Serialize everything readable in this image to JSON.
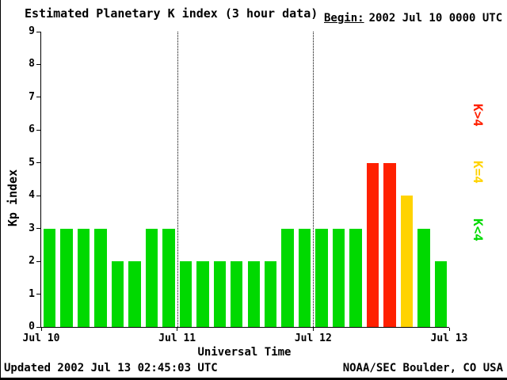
{
  "title": "Estimated Planetary K index (3 hour data)",
  "begin": {
    "label": "Begin:",
    "value": "2002 Jul 10 0000 UTC"
  },
  "footer": {
    "updated": "Updated 2002 Jul 13 02:45:03 UTC",
    "credit": "NOAA/SEC Boulder, CO USA"
  },
  "chart_data": {
    "type": "bar",
    "title": "Estimated Planetary K index (3 hour data)",
    "xlabel": "Universal Time",
    "ylabel": "Kp index",
    "ylim": [
      0,
      9
    ],
    "yticks": [
      0,
      1,
      2,
      3,
      4,
      5,
      6,
      7,
      8,
      9
    ],
    "x_day_labels": [
      "Jul 10",
      "Jul 11",
      "Jul 12",
      "Jul 13"
    ],
    "bars_per_day": 8,
    "interval_hours": 3,
    "values": [
      3,
      3,
      3,
      3,
      2,
      2,
      3,
      3,
      2,
      2,
      2,
      2,
      2,
      2,
      3,
      3,
      3,
      3,
      3,
      5,
      5,
      4,
      3,
      2
    ],
    "day_boundary_lines": [
      1,
      2
    ],
    "colors": {
      "low": "#00D900",
      "mid": "#FFD300",
      "high": "#FF2000"
    },
    "legend": [
      {
        "label": "K>4",
        "color_key": "high"
      },
      {
        "label": "K=4",
        "color_key": "mid"
      },
      {
        "label": "K<4",
        "color_key": "low"
      }
    ],
    "grid": "vertical-dotted-day-boundaries",
    "legend_position": "right"
  }
}
